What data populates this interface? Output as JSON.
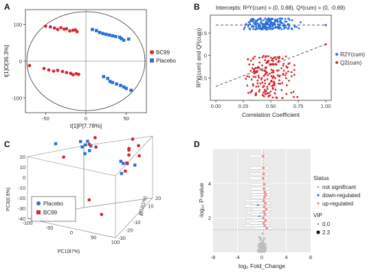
{
  "colors": {
    "red": "#d9262e",
    "blue": "#2b6fd6",
    "grey": "#bdbdbd",
    "pink": "#ec8f8f"
  },
  "panels": {
    "a": "A",
    "b": "B",
    "c": "C",
    "d": "D"
  },
  "chart_data": [
    {
      "id": "A",
      "type": "scatter",
      "xlabel": "t[1]P[7.78%]",
      "ylabel": "t[1]O[36.3%]",
      "xlim": [
        -75,
        75
      ],
      "ylim": [
        -140,
        140
      ],
      "xticks": [
        -50,
        0,
        50
      ],
      "yticks": [
        -100,
        0,
        100
      ],
      "legend": "right",
      "series": [
        {
          "name": "BC99",
          "color": "red",
          "marker": "circle",
          "points": [
            [
              -50,
              95
            ],
            [
              -44,
              93
            ],
            [
              -39,
              90
            ],
            [
              -35,
              86
            ],
            [
              -31,
              91
            ],
            [
              -27,
              87
            ],
            [
              -24,
              88
            ],
            [
              -20,
              82
            ],
            [
              -16,
              84
            ],
            [
              -13,
              85
            ],
            [
              -11,
              80
            ],
            [
              -70,
              -12
            ],
            [
              -52,
              -20
            ],
            [
              -46,
              -24
            ],
            [
              -40,
              -27
            ],
            [
              -35,
              -25
            ],
            [
              -29,
              -28
            ],
            [
              -24,
              -31
            ],
            [
              -19,
              -33
            ],
            [
              -16,
              -37
            ],
            [
              -12,
              -34
            ],
            [
              -9,
              -36
            ]
          ]
        },
        {
          "name": "Placebo",
          "color": "blue",
          "marker": "square",
          "points": [
            [
              8,
              86
            ],
            [
              13,
              83
            ],
            [
              17,
              78
            ],
            [
              21,
              75
            ],
            [
              25,
              73
            ],
            [
              29,
              71
            ],
            [
              33,
              69
            ],
            [
              37,
              67
            ],
            [
              42,
              65
            ],
            [
              44,
              61
            ],
            [
              47,
              57
            ],
            [
              53,
              60
            ],
            [
              22,
              -42
            ],
            [
              27,
              -47
            ],
            [
              30,
              -55
            ],
            [
              33,
              -58
            ],
            [
              38,
              -62
            ],
            [
              43,
              -66
            ],
            [
              47,
              -70
            ],
            [
              50,
              -74
            ],
            [
              56,
              -79
            ]
          ]
        }
      ]
    },
    {
      "id": "B",
      "type": "scatter",
      "title": "Intercepts: R²Y(cum) = (0, 0.68), Q²(cum) = (0, -0.69)",
      "xlabel": "Correlation Coefficient",
      "ylabel": "R²Y(cum) and Q²(cum)",
      "xlim": [
        -0.05,
        1.05
      ],
      "ylim": [
        -1.0,
        0.9
      ],
      "xticks": [
        0.0,
        0.25,
        0.5,
        0.75,
        1.0
      ],
      "xticklabels": [
        "0.00",
        "0.25",
        "0.50",
        "0.75",
        "1.00"
      ],
      "yticks": [
        -0.5,
        0.0,
        0.5
      ],
      "legend": "right",
      "series": [
        {
          "name": "R2Y(cum)",
          "color": "blue",
          "x_range": [
            0.3,
            0.7
          ],
          "y_range": [
            0.58,
            0.83
          ],
          "count": 200,
          "endpoint": [
            1.0,
            0.68
          ]
        },
        {
          "name": "Q2(cum)",
          "color": "red",
          "x_range": [
            0.3,
            0.7
          ],
          "y_range": [
            -0.95,
            0.0
          ],
          "count": 200,
          "endpoint": [
            1.0,
            0.25
          ]
        }
      ],
      "regression_lines": [
        {
          "series": "R2Y(cum)",
          "from": [
            0,
            0.68
          ],
          "to": [
            1.0,
            0.68
          ]
        },
        {
          "series": "Q2(cum)",
          "from": [
            0,
            -0.69
          ],
          "to": [
            1.0,
            0.25
          ]
        }
      ]
    },
    {
      "id": "C",
      "type": "scatter",
      "xlabel": "PC1(87%)",
      "ylabel": "PC2(1%)",
      "zlabel": "PC3(0.9%)",
      "xticks": [
        -100,
        -50,
        0,
        50,
        100
      ],
      "yticks": [
        -30,
        -20,
        -10,
        0,
        10,
        20
      ],
      "zticks": [
        -40,
        -30,
        -20,
        -10,
        0,
        10,
        20
      ],
      "legend": "bottom-left",
      "series": [
        {
          "name": "Placebo",
          "color": "blue",
          "marker": "square",
          "points": [
            [
              -95,
              5,
              6
            ],
            [
              -30,
              0,
              18
            ],
            [
              -26,
              4,
              12
            ],
            [
              -23,
              -2,
              15
            ],
            [
              -19,
              3,
              17
            ],
            [
              -15,
              -3,
              10
            ],
            [
              -10,
              2,
              14
            ],
            [
              -8,
              -1,
              12
            ],
            [
              70,
              -5,
              12
            ],
            [
              75,
              0,
              7
            ],
            [
              80,
              -10,
              5
            ],
            [
              85,
              5,
              2
            ],
            [
              62,
              3,
              3
            ]
          ]
        },
        {
          "name": "BC99",
          "color": "red",
          "marker": "circle",
          "points": [
            [
              -5,
              -3,
              20
            ],
            [
              -2,
              3,
              22
            ],
            [
              5,
              0,
              16
            ],
            [
              -60,
              -5,
              4
            ],
            [
              75,
              8,
              24
            ],
            [
              80,
              0,
              20
            ],
            [
              85,
              -3,
              18
            ],
            [
              90,
              -8,
              14
            ],
            [
              95,
              5,
              12
            ],
            [
              85,
              10,
              17
            ],
            [
              70,
              6,
              16
            ],
            [
              92,
              -12,
              10
            ],
            [
              20,
              -18,
              -20
            ],
            [
              60,
              -25,
              -25
            ]
          ]
        }
      ]
    },
    {
      "id": "D",
      "type": "scatter",
      "xlabel": "log₂ Fold_Change",
      "ylabel": "-log₁₀ P-value",
      "xlim": [
        -8,
        8
      ],
      "ylim": [
        0,
        6
      ],
      "xticks": [
        -8,
        -4,
        0,
        4,
        8
      ],
      "yticks": [
        2,
        4
      ],
      "legend_status_title": "Status",
      "legend_status": [
        "not significant",
        "down-regulated",
        "up-regulated"
      ],
      "legend_vip_title": "VIP",
      "legend_vip": [
        "0.0",
        "2.3"
      ],
      "series": [
        {
          "name": "not significant",
          "color": "grey",
          "count": 180
        },
        {
          "name": "down-regulated",
          "color": "blue",
          "points": [
            [
              -0.4,
              2.05
            ],
            [
              -0.3,
              1.8
            ],
            [
              -0.5,
              1.55
            ],
            [
              -0.2,
              2.3
            ],
            [
              -0.6,
              2.7
            ],
            [
              -0.35,
              3.0
            ]
          ]
        },
        {
          "name": "up-regulated",
          "color": "pink",
          "points": [
            [
              0.2,
              5.6
            ],
            [
              0.25,
              4.9
            ],
            [
              0.3,
              4.55
            ],
            [
              0.2,
              4.3
            ],
            [
              0.4,
              3.95
            ],
            [
              0.35,
              3.7
            ],
            [
              0.5,
              3.5
            ],
            [
              0.6,
              3.35
            ],
            [
              0.45,
              3.2
            ],
            [
              0.3,
              3.0
            ],
            [
              0.55,
              2.85
            ],
            [
              0.4,
              2.65
            ],
            [
              0.7,
              2.5
            ],
            [
              0.35,
              2.35
            ],
            [
              0.5,
              2.2
            ],
            [
              0.25,
              2.0
            ],
            [
              0.6,
              1.85
            ],
            [
              0.3,
              1.7
            ],
            [
              0.45,
              1.55
            ],
            [
              0.8,
              1.4
            ]
          ]
        }
      ]
    }
  ]
}
